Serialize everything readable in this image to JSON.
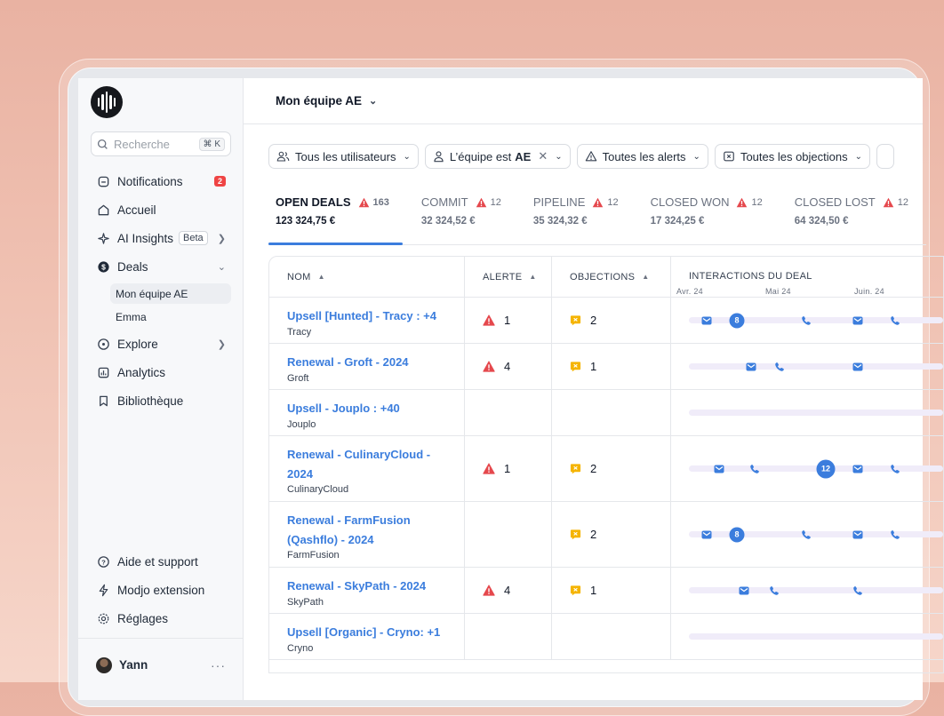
{
  "app": {
    "team_selector": "Mon équipe AE"
  },
  "sidebar": {
    "search_placeholder": "Recherche",
    "search_shortcut": "⌘ K",
    "items": [
      {
        "label": "Notifications",
        "icon": "bell-icon",
        "badge": "2"
      },
      {
        "label": "Accueil",
        "icon": "home-icon"
      },
      {
        "label": "AI Insights",
        "icon": "sparkle-icon",
        "tag": "Beta"
      },
      {
        "label": "Deals",
        "icon": "dollar-icon"
      },
      {
        "label": "Explore",
        "icon": "compass-icon"
      },
      {
        "label": "Analytics",
        "icon": "chart-icon"
      },
      {
        "label": "Bibliothèque",
        "icon": "bookmark-icon"
      }
    ],
    "deals_sub": [
      "Mon équipe AE",
      "Emma"
    ],
    "bottom_items": [
      {
        "label": "Aide et support",
        "icon": "help-icon"
      },
      {
        "label": "Modjo extension",
        "icon": "bolt-icon"
      },
      {
        "label": "Réglages",
        "icon": "gear-icon"
      }
    ],
    "user": {
      "name": "Yann",
      "more": "···"
    }
  },
  "filters": {
    "users": "Tous les utilisateurs",
    "team_prefix": "L’équipe est",
    "team_value": "AE",
    "alerts": "Toutes les alerts",
    "objections": "Toutes les objections"
  },
  "tabs": [
    {
      "title": "OPEN DEALS",
      "count": "163",
      "amount": "123 324,75 €"
    },
    {
      "title": "COMMIT",
      "count": "12",
      "amount": "32 324,52 €"
    },
    {
      "title": "PIPELINE",
      "count": "12",
      "amount": "35 324,32 €"
    },
    {
      "title": "CLOSED WON",
      "count": "12",
      "amount": "17 324,25 €"
    },
    {
      "title": "CLOSED LOST",
      "count": "12",
      "amount": "64 324,50 €"
    }
  ],
  "table": {
    "headers": {
      "name": "NOM",
      "alert": "ALERTE",
      "objections": "OBJECTIONS",
      "interactions": "INTERACTIONS DU DEAL"
    },
    "months": [
      "Avr. 24",
      "Mai 24",
      "Juin. 24"
    ],
    "rows": [
      {
        "name": "Upsell [Hunted] - Tracy : +4",
        "company": "Tracy",
        "alerts": "1",
        "objections": "2"
      },
      {
        "name": "Renewal - Groft - 2024",
        "company": "Groft",
        "alerts": "4",
        "objections": "1"
      },
      {
        "name": "Upsell - Jouplo : +40",
        "company": "Jouplo",
        "alerts": "",
        "objections": ""
      },
      {
        "name": "Renewal - CulinaryCloud - 2024",
        "company": "CulinaryCloud",
        "alerts": "1",
        "objections": "2"
      },
      {
        "name": "Renewal - FarmFusion (Qashflo) - 2024",
        "company": "FarmFusion",
        "alerts": "",
        "objections": "2"
      },
      {
        "name": "Renewal - SkyPath - 2024",
        "company": "SkyPath",
        "alerts": "4",
        "objections": "1"
      },
      {
        "name": "Upsell [Organic] - Cryno: +1",
        "company": "Cryno",
        "alerts": "",
        "objections": ""
      }
    ],
    "timeline_counts": [
      "8",
      "12",
      "8"
    ]
  },
  "colors": {
    "accent": "#3b7ddd",
    "alert": "#e5484d",
    "objection": "#f5b400",
    "track": "#f0ecf9"
  }
}
